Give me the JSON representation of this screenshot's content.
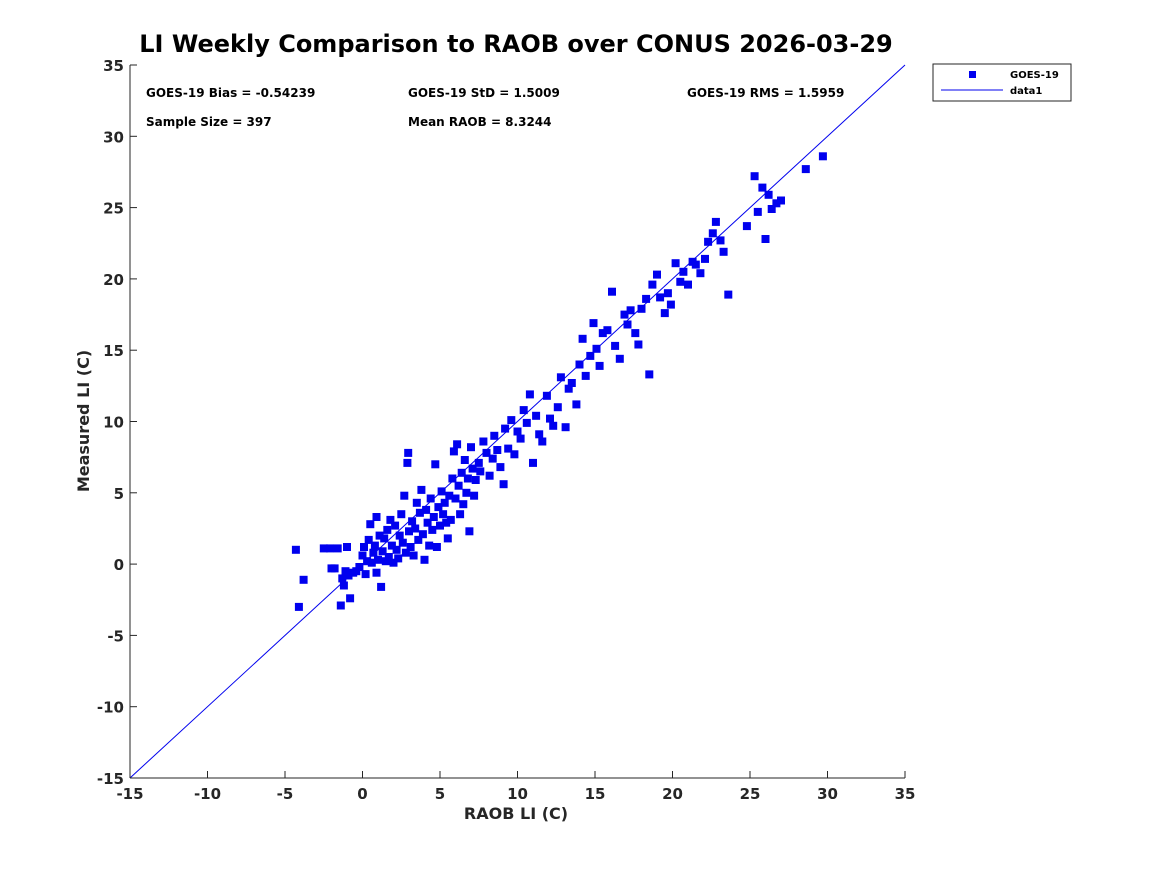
{
  "chart_data": {
    "type": "scatter",
    "title": "LI Weekly Comparison to RAOB over CONUS 2026-03-29",
    "xlabel": "RAOB LI (C)",
    "ylabel": "Measured LI (C)",
    "xlim": [
      -15,
      35
    ],
    "ylim": [
      -15,
      35
    ],
    "xticks": [
      -15,
      -10,
      -5,
      0,
      5,
      10,
      15,
      20,
      25,
      30,
      35
    ],
    "yticks": [
      -15,
      -10,
      -5,
      0,
      5,
      10,
      15,
      20,
      25,
      30,
      35
    ],
    "grid": false,
    "legend_position": "outside-top-right",
    "annotations": {
      "bias": "GOES-19 Bias = -0.54239",
      "std": "GOES-19 StD = 1.5009",
      "rms": "GOES-19 RMS = 1.5959",
      "sample_size": "Sample Size = 397",
      "mean_raob": "Mean RAOB = 8.3244"
    },
    "series": [
      {
        "name": "GOES-19",
        "kind": "scatter",
        "marker": "square",
        "color": "#0000ee",
        "points": [
          [
            -4.3,
            1.0
          ],
          [
            -4.1,
            -3.0
          ],
          [
            -3.8,
            -1.1
          ],
          [
            -2.5,
            1.1
          ],
          [
            -2.1,
            1.1
          ],
          [
            -2.0,
            -0.3
          ],
          [
            -1.8,
            -0.3
          ],
          [
            -1.6,
            1.1
          ],
          [
            -1.4,
            -2.9
          ],
          [
            -1.3,
            -1.0
          ],
          [
            -1.2,
            -1.5
          ],
          [
            -1.1,
            -0.5
          ],
          [
            -1.0,
            1.2
          ],
          [
            -0.9,
            -0.8
          ],
          [
            -0.8,
            -2.4
          ],
          [
            -0.6,
            -0.6
          ],
          [
            -0.4,
            -0.5
          ],
          [
            -0.2,
            -0.2
          ],
          [
            0.0,
            0.6
          ],
          [
            0.1,
            1.2
          ],
          [
            0.2,
            -0.7
          ],
          [
            0.3,
            0.2
          ],
          [
            0.4,
            1.7
          ],
          [
            0.5,
            2.8
          ],
          [
            0.6,
            0.1
          ],
          [
            0.7,
            0.8
          ],
          [
            0.8,
            1.3
          ],
          [
            0.9,
            -0.6
          ],
          [
            0.9,
            3.3
          ],
          [
            1.0,
            0.3
          ],
          [
            1.1,
            2.0
          ],
          [
            1.2,
            -1.6
          ],
          [
            1.3,
            0.9
          ],
          [
            1.4,
            1.8
          ],
          [
            1.5,
            0.2
          ],
          [
            1.6,
            2.4
          ],
          [
            1.7,
            0.5
          ],
          [
            1.8,
            3.1
          ],
          [
            1.9,
            1.3
          ],
          [
            2.0,
            0.1
          ],
          [
            2.1,
            2.7
          ],
          [
            2.2,
            1.0
          ],
          [
            2.3,
            0.4
          ],
          [
            2.4,
            2.0
          ],
          [
            2.5,
            3.5
          ],
          [
            2.6,
            1.5
          ],
          [
            2.7,
            4.8
          ],
          [
            2.8,
            0.8
          ],
          [
            2.9,
            7.1
          ],
          [
            2.95,
            7.8
          ],
          [
            3.0,
            2.3
          ],
          [
            3.1,
            1.2
          ],
          [
            3.2,
            3.0
          ],
          [
            3.3,
            0.6
          ],
          [
            3.4,
            2.5
          ],
          [
            3.5,
            4.3
          ],
          [
            3.6,
            1.7
          ],
          [
            3.7,
            3.6
          ],
          [
            3.8,
            5.2
          ],
          [
            3.9,
            2.1
          ],
          [
            4.0,
            0.3
          ],
          [
            4.1,
            3.8
          ],
          [
            4.2,
            2.9
          ],
          [
            4.3,
            1.3
          ],
          [
            4.4,
            4.6
          ],
          [
            4.5,
            2.4
          ],
          [
            4.6,
            3.3
          ],
          [
            4.7,
            7.0
          ],
          [
            4.8,
            1.2
          ],
          [
            4.9,
            4.0
          ],
          [
            5.0,
            2.7
          ],
          [
            5.1,
            5.1
          ],
          [
            5.2,
            3.5
          ],
          [
            5.3,
            4.3
          ],
          [
            5.4,
            2.9
          ],
          [
            5.5,
            1.8
          ],
          [
            5.6,
            4.8
          ],
          [
            5.7,
            3.1
          ],
          [
            5.8,
            6.0
          ],
          [
            5.9,
            7.9
          ],
          [
            6.0,
            4.6
          ],
          [
            6.1,
            8.4
          ],
          [
            6.2,
            5.5
          ],
          [
            6.3,
            3.5
          ],
          [
            6.4,
            6.4
          ],
          [
            6.5,
            4.2
          ],
          [
            6.6,
            7.3
          ],
          [
            6.7,
            5.0
          ],
          [
            6.8,
            6.0
          ],
          [
            6.9,
            2.3
          ],
          [
            7.0,
            8.2
          ],
          [
            7.1,
            6.7
          ],
          [
            7.2,
            4.8
          ],
          [
            7.3,
            5.9
          ],
          [
            7.5,
            7.1
          ],
          [
            7.6,
            6.5
          ],
          [
            7.8,
            8.6
          ],
          [
            8.0,
            7.8
          ],
          [
            8.2,
            6.2
          ],
          [
            8.4,
            7.4
          ],
          [
            8.5,
            9.0
          ],
          [
            8.7,
            8.0
          ],
          [
            8.9,
            6.8
          ],
          [
            9.1,
            5.6
          ],
          [
            9.2,
            9.5
          ],
          [
            9.4,
            8.1
          ],
          [
            9.6,
            10.1
          ],
          [
            9.8,
            7.7
          ],
          [
            10.0,
            9.3
          ],
          [
            10.2,
            8.8
          ],
          [
            10.4,
            10.8
          ],
          [
            10.6,
            9.9
          ],
          [
            10.8,
            11.9
          ],
          [
            11.0,
            7.1
          ],
          [
            11.2,
            10.4
          ],
          [
            11.4,
            9.1
          ],
          [
            11.6,
            8.6
          ],
          [
            11.9,
            11.8
          ],
          [
            12.1,
            10.2
          ],
          [
            12.3,
            9.7
          ],
          [
            12.6,
            11.0
          ],
          [
            12.8,
            13.1
          ],
          [
            13.1,
            9.6
          ],
          [
            13.3,
            12.3
          ],
          [
            13.5,
            12.7
          ],
          [
            13.8,
            11.2
          ],
          [
            14.0,
            14.0
          ],
          [
            14.2,
            15.8
          ],
          [
            14.4,
            13.2
          ],
          [
            14.7,
            14.6
          ],
          [
            14.9,
            16.9
          ],
          [
            15.1,
            15.1
          ],
          [
            15.3,
            13.9
          ],
          [
            15.5,
            16.2
          ],
          [
            15.8,
            16.4
          ],
          [
            16.1,
            19.1
          ],
          [
            16.3,
            15.3
          ],
          [
            16.6,
            14.4
          ],
          [
            16.9,
            17.5
          ],
          [
            17.1,
            16.8
          ],
          [
            17.3,
            17.8
          ],
          [
            17.6,
            16.2
          ],
          [
            17.8,
            15.4
          ],
          [
            18.0,
            17.9
          ],
          [
            18.3,
            18.6
          ],
          [
            18.5,
            13.3
          ],
          [
            18.7,
            19.6
          ],
          [
            19.0,
            20.3
          ],
          [
            19.2,
            18.7
          ],
          [
            19.5,
            17.6
          ],
          [
            19.7,
            19.0
          ],
          [
            19.9,
            18.2
          ],
          [
            20.2,
            21.1
          ],
          [
            20.5,
            19.8
          ],
          [
            20.7,
            20.5
          ],
          [
            21.0,
            19.6
          ],
          [
            21.3,
            21.2
          ],
          [
            21.5,
            21.0
          ],
          [
            21.8,
            20.4
          ],
          [
            22.1,
            21.4
          ],
          [
            22.3,
            22.6
          ],
          [
            22.6,
            23.2
          ],
          [
            22.8,
            24.0
          ],
          [
            23.1,
            22.7
          ],
          [
            23.3,
            21.9
          ],
          [
            23.6,
            18.9
          ],
          [
            24.8,
            23.7
          ],
          [
            25.3,
            27.2
          ],
          [
            25.5,
            24.7
          ],
          [
            25.8,
            26.4
          ],
          [
            26.0,
            22.8
          ],
          [
            26.2,
            25.9
          ],
          [
            26.4,
            24.9
          ],
          [
            26.7,
            25.3
          ],
          [
            27.0,
            25.5
          ],
          [
            28.6,
            27.7
          ],
          [
            29.7,
            28.6
          ]
        ]
      },
      {
        "name": "data1",
        "kind": "line",
        "color": "#0000ee",
        "x": [
          -15,
          35
        ],
        "y": [
          -15,
          35
        ]
      }
    ]
  }
}
